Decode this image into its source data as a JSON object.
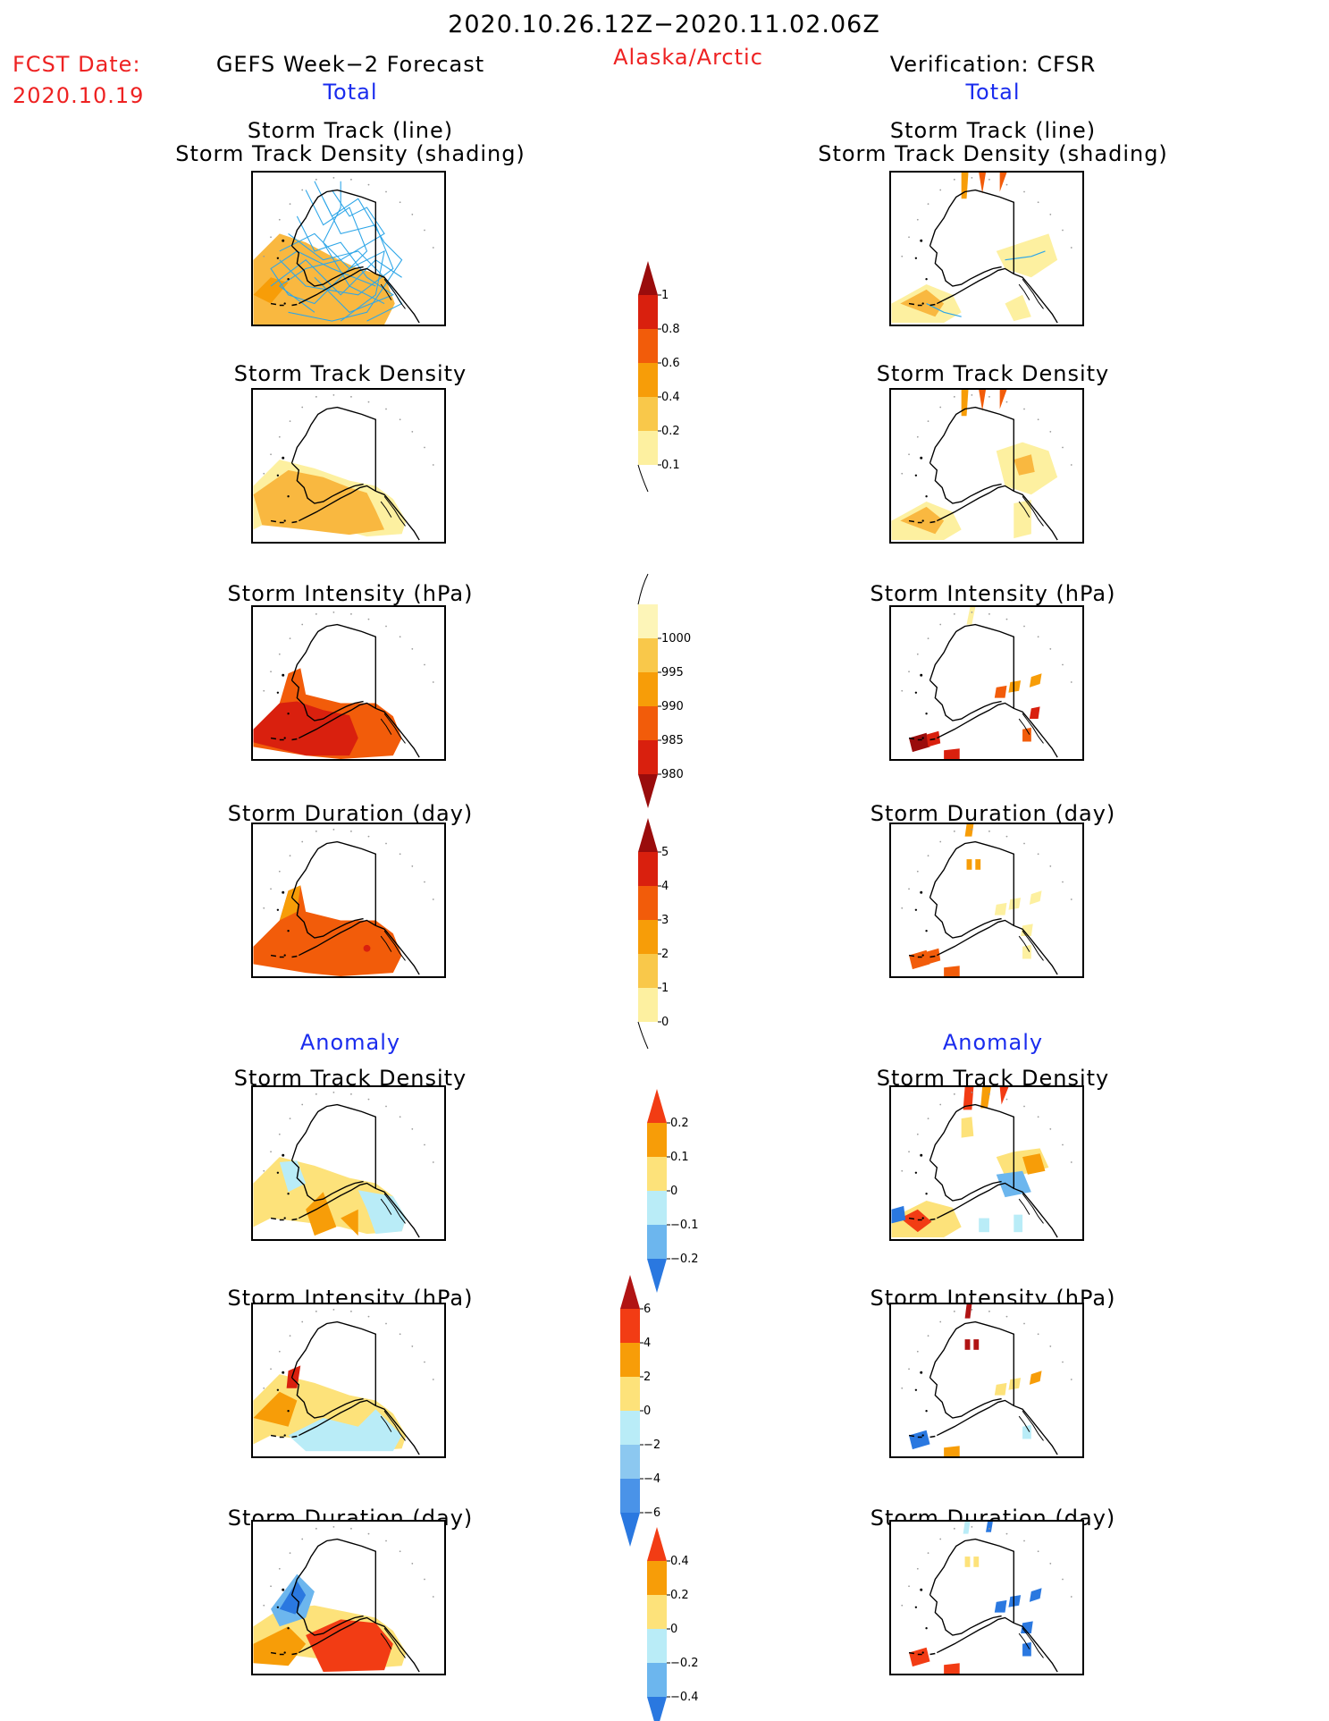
{
  "header": {
    "period": "2020.10.26.12Z−2020.11.02.06Z",
    "fcst_label": "FCST Date:",
    "fcst_date": "2020.10.19",
    "region": "Alaska/Arctic",
    "left_title": "GEFS Week−2 Forecast",
    "right_title": "Verification: CFSR",
    "left_sub": "Total",
    "right_sub": "Total",
    "anomaly_left": "Anomaly",
    "anomaly_right": "Anomaly"
  },
  "panels": {
    "track_title_1": "Storm Track (line)",
    "track_title_2": "Storm Track Density (shading)",
    "density": "Storm Track Density",
    "intensity": "Storm Intensity (hPa)",
    "duration": "Storm Duration (day)"
  },
  "colorbars": [
    {
      "id": "density",
      "labels": [
        "1",
        "0.8",
        "0.6",
        "0.4",
        "0.2",
        "0.1"
      ],
      "colors": [
        "#9a0c0c",
        "#d9200e",
        "#f25c0a",
        "#f79d08",
        "#f9c84a",
        "#fdf0a0"
      ]
    },
    {
      "id": "intensity",
      "labels": [
        "1000",
        "995",
        "990",
        "985",
        "980"
      ],
      "colors": [
        "#fdf5b8",
        "#f9c84a",
        "#f79d08",
        "#f25c0a",
        "#d9200e",
        "#9a0c0c"
      ]
    },
    {
      "id": "duration",
      "labels": [
        "5",
        "4",
        "3",
        "2",
        "1",
        "0"
      ],
      "colors": [
        "#9a0c0c",
        "#d9200e",
        "#f25c0a",
        "#f79d08",
        "#f9c84a",
        "#fdf0a0"
      ]
    },
    {
      "id": "density-anom",
      "labels": [
        "0.2",
        "0.1",
        "0",
        "−0.1",
        "−0.2"
      ],
      "colors": [
        "#f23c14",
        "#f79d08",
        "#fde27a",
        "#b9ecf7",
        "#6cb6ee",
        "#2a78e0"
      ]
    },
    {
      "id": "intensity-anom",
      "labels": [
        "6",
        "4",
        "2",
        "0",
        "−2",
        "−4",
        "−6"
      ],
      "colors": [
        "#b11414",
        "#f23c14",
        "#f79d08",
        "#fde27a",
        "#b9ecf7",
        "#8cc8f0",
        "#4a93e8",
        "#2a78e0"
      ]
    },
    {
      "id": "duration-anom",
      "labels": [
        "0.4",
        "0.2",
        "0",
        "−0.2",
        "−0.4"
      ],
      "colors": [
        "#f23c14",
        "#f79d08",
        "#fde27a",
        "#b9ecf7",
        "#6cb6ee",
        "#2a78e0"
      ]
    }
  ]
}
